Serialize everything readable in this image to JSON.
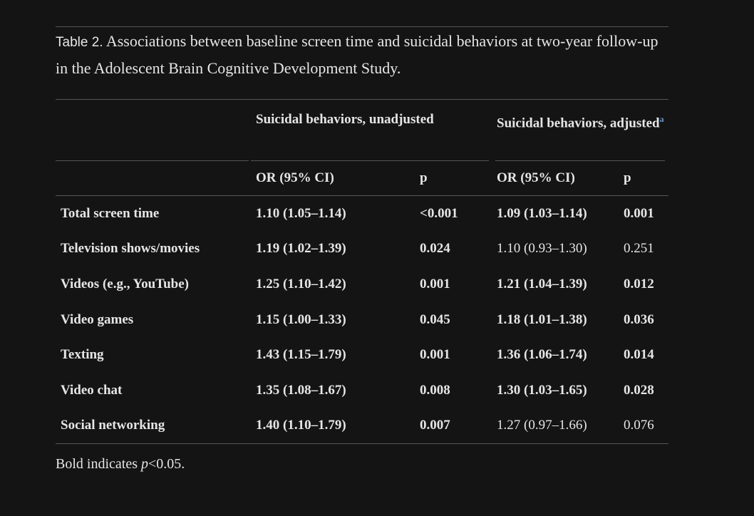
{
  "caption": {
    "label": "Table 2.",
    "text": "Associations between baseline screen time and suicidal behaviors at two-year follow-up in the Adolescent Brain Cognitive Development Study."
  },
  "table": {
    "group_headers": [
      "Suicidal behaviors, unadjusted",
      "Suicidal behaviors, adjusted"
    ],
    "group_header_note": "a",
    "column_headers": [
      "OR (95% CI)",
      "p",
      "OR (95% CI)",
      "p"
    ],
    "rows": [
      {
        "label": "Total screen time",
        "cells": [
          "1.10 (1.05–1.14)",
          "<0.001",
          "1.09 (1.03–1.14)",
          "0.001"
        ],
        "bold": [
          true,
          true
        ]
      },
      {
        "label": "Television shows/movies",
        "cells": [
          "1.19 (1.02–1.39)",
          "0.024",
          "1.10 (0.93–1.30)",
          "0.251"
        ],
        "bold": [
          true,
          false
        ]
      },
      {
        "label": "Videos (e.g., YouTube)",
        "cells": [
          "1.25 (1.10–1.42)",
          "0.001",
          "1.21 (1.04–1.39)",
          "0.012"
        ],
        "bold": [
          true,
          true
        ]
      },
      {
        "label": "Video games",
        "cells": [
          "1.15 (1.00–1.33)",
          "0.045",
          "1.18 (1.01–1.38)",
          "0.036"
        ],
        "bold": [
          true,
          true
        ]
      },
      {
        "label": "Texting",
        "cells": [
          "1.43 (1.15–1.79)",
          "0.001",
          "1.36 (1.06–1.74)",
          "0.014"
        ],
        "bold": [
          true,
          true
        ]
      },
      {
        "label": "Video chat",
        "cells": [
          "1.35 (1.08–1.67)",
          "0.008",
          "1.30 (1.03–1.65)",
          "0.028"
        ],
        "bold": [
          true,
          true
        ]
      },
      {
        "label": "Social networking",
        "cells": [
          "1.40 (1.10–1.79)",
          "0.007",
          "1.27 (0.97–1.66)",
          "0.076"
        ],
        "bold": [
          true,
          false
        ]
      }
    ]
  },
  "footnote": {
    "parts": [
      "Bold indicates ",
      "p",
      "<0.05."
    ]
  }
}
